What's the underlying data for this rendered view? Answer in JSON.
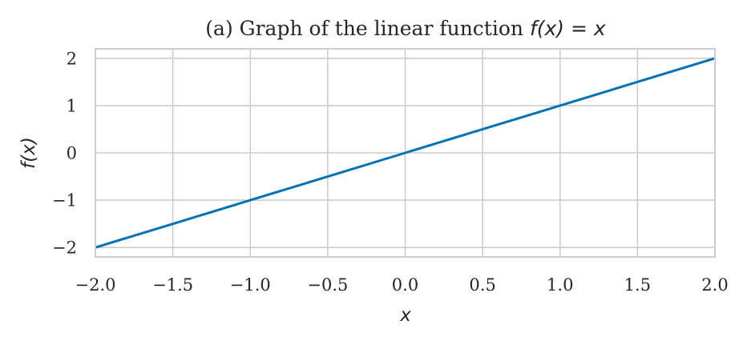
{
  "colors": {
    "series": "#0173b2",
    "grid": "#cccccc",
    "text": "#262626"
  },
  "chart_data": {
    "type": "line",
    "title": {
      "prefix": "(a) Graph of the linear function ",
      "math": "f(x) = x"
    },
    "xlabel": "x",
    "ylabel": "f(x)",
    "xlim": [
      -2.0,
      2.0
    ],
    "ylim": [
      -2.2,
      2.2
    ],
    "xticks": [
      -2.0,
      -1.5,
      -1.0,
      -0.5,
      0.0,
      0.5,
      1.0,
      1.5,
      2.0
    ],
    "xtick_labels": [
      "−2.0",
      "−1.5",
      "−1.0",
      "−0.5",
      "0.0",
      "0.5",
      "1.0",
      "1.5",
      "2.0"
    ],
    "yticks": [
      -2,
      -1,
      0,
      1,
      2
    ],
    "ytick_labels": [
      "−2",
      "−1",
      "0",
      "1",
      "2"
    ],
    "grid": true,
    "series": [
      {
        "x": [
          -2.0,
          -1.5,
          -1.0,
          -0.5,
          0.0,
          0.5,
          1.0,
          1.5,
          2.0
        ],
        "y": [
          -2.0,
          -1.5,
          -1.0,
          -0.5,
          0.0,
          0.5,
          1.0,
          1.5,
          2.0
        ]
      }
    ]
  }
}
